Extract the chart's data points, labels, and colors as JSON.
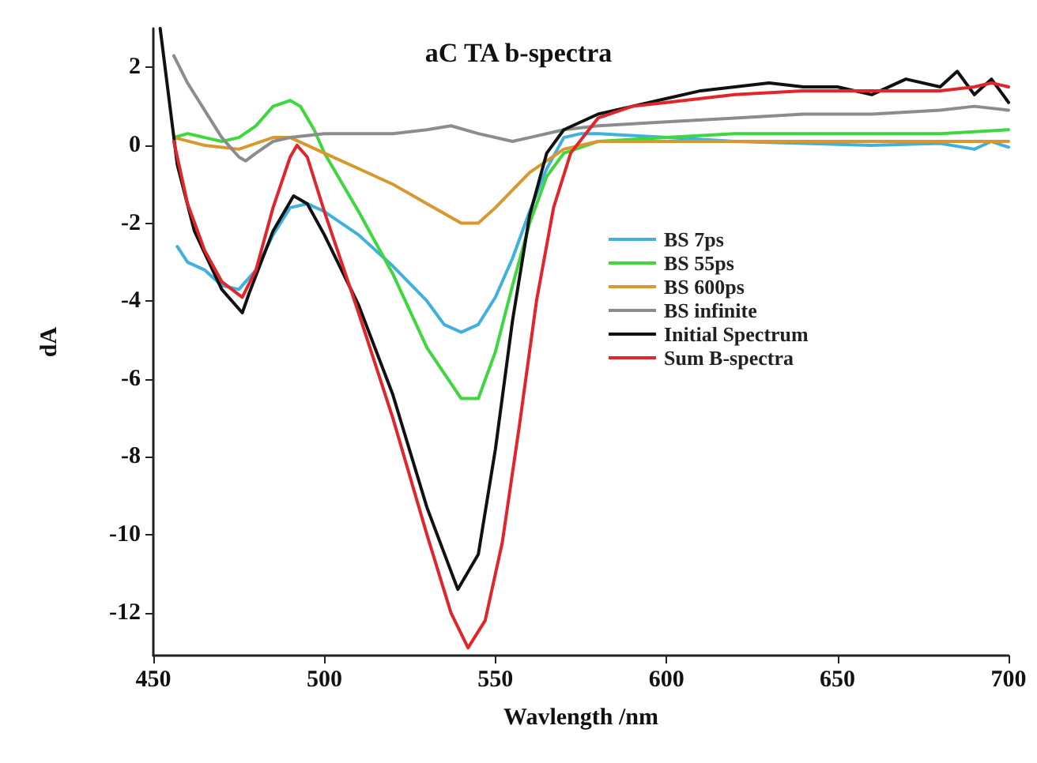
{
  "chart_data": {
    "type": "line",
    "title": "aC TA b-spectra",
    "xlabel": "Wavlength /nm",
    "ylabel": "dA",
    "xlim": [
      450,
      700
    ],
    "xticks": [
      450,
      500,
      550,
      600,
      650,
      700
    ],
    "ylim": [
      -13.1,
      3
    ],
    "yticks": [
      -12,
      -10,
      -8,
      -6,
      -4,
      -2,
      0,
      2
    ],
    "grid": false,
    "legend": "right",
    "marker": "none",
    "line_style": "solid",
    "series": [
      {
        "name": "BS 7ps",
        "color": "#3fb0e0",
        "x": [
          457,
          460,
          465,
          470,
          475,
          480,
          485,
          490,
          495,
          500,
          510,
          520,
          530,
          535,
          540,
          545,
          550,
          555,
          560,
          565,
          570,
          575,
          580,
          600,
          620,
          640,
          660,
          680,
          690,
          695,
          700
        ],
        "values": [
          -2.6,
          -3.0,
          -3.2,
          -3.6,
          -3.7,
          -3.2,
          -2.3,
          -1.6,
          -1.5,
          -1.7,
          -2.3,
          -3.1,
          -4.0,
          -4.6,
          -4.8,
          -4.6,
          -3.9,
          -2.9,
          -1.7,
          -0.6,
          0.2,
          0.3,
          0.3,
          0.2,
          0.1,
          0.05,
          0.0,
          0.05,
          -0.1,
          0.1,
          -0.05
        ]
      },
      {
        "name": "BS 55ps",
        "color": "#3ed83e",
        "x": [
          456,
          460,
          465,
          470,
          475,
          480,
          485,
          490,
          493,
          497,
          500,
          510,
          520,
          530,
          540,
          545,
          550,
          555,
          560,
          565,
          570,
          580,
          600,
          620,
          640,
          660,
          680,
          700
        ],
        "values": [
          0.2,
          0.3,
          0.2,
          0.1,
          0.2,
          0.5,
          1.0,
          1.15,
          1.0,
          0.4,
          -0.2,
          -1.7,
          -3.3,
          -5.2,
          -6.5,
          -6.5,
          -5.3,
          -3.6,
          -2.0,
          -0.8,
          -0.2,
          0.1,
          0.2,
          0.3,
          0.3,
          0.3,
          0.3,
          0.4
        ]
      },
      {
        "name": "BS 600ps",
        "color": "#d9982e",
        "x": [
          456,
          465,
          475,
          485,
          490,
          500,
          510,
          520,
          530,
          540,
          545,
          550,
          560,
          570,
          580,
          600,
          650,
          700
        ],
        "values": [
          0.2,
          0.0,
          -0.1,
          0.2,
          0.2,
          -0.2,
          -0.6,
          -1.0,
          -1.5,
          -2.0,
          -2.0,
          -1.6,
          -0.7,
          -0.1,
          0.1,
          0.1,
          0.1,
          0.1
        ]
      },
      {
        "name": "BS infinite",
        "color": "#8c8c8c",
        "x": [
          456,
          460,
          465,
          470,
          475,
          477,
          480,
          485,
          490,
          500,
          520,
          530,
          537,
          545,
          555,
          560,
          570,
          580,
          600,
          620,
          640,
          660,
          680,
          690,
          700
        ],
        "values": [
          2.3,
          1.6,
          0.9,
          0.2,
          -0.3,
          -0.4,
          -0.2,
          0.1,
          0.2,
          0.3,
          0.3,
          0.4,
          0.5,
          0.3,
          0.1,
          0.2,
          0.4,
          0.5,
          0.6,
          0.7,
          0.8,
          0.8,
          0.9,
          1.0,
          0.9
        ]
      },
      {
        "name": "Initial Spectrum",
        "color": "#111111",
        "x": [
          452,
          457,
          462,
          470,
          476,
          478,
          485,
          491,
          495,
          500,
          510,
          520,
          530,
          539,
          545,
          550,
          555,
          560,
          565,
          570,
          580,
          590,
          600,
          610,
          620,
          630,
          640,
          650,
          660,
          670,
          680,
          685,
          690,
          695,
          700
        ],
        "values": [
          3.0,
          -0.5,
          -2.2,
          -3.7,
          -4.3,
          -3.8,
          -2.2,
          -1.3,
          -1.5,
          -2.3,
          -4.1,
          -6.4,
          -9.3,
          -11.4,
          -10.5,
          -7.8,
          -4.5,
          -1.8,
          -0.2,
          0.4,
          0.8,
          1.0,
          1.2,
          1.4,
          1.5,
          1.6,
          1.5,
          1.5,
          1.3,
          1.7,
          1.5,
          1.9,
          1.3,
          1.7,
          1.1
        ]
      },
      {
        "name": "Sum B-spectra",
        "color": "#e0262a",
        "x": [
          456,
          460,
          465,
          470,
          476,
          480,
          485,
          490,
          492,
          495,
          500,
          510,
          520,
          530,
          537,
          542,
          547,
          552,
          557,
          562,
          567,
          572,
          580,
          590,
          600,
          620,
          640,
          660,
          680,
          690,
          695,
          700
        ],
        "values": [
          0.1,
          -1.5,
          -2.7,
          -3.5,
          -3.9,
          -3.2,
          -1.6,
          -0.3,
          0.0,
          -0.3,
          -1.7,
          -4.3,
          -7.0,
          -10.0,
          -12.0,
          -12.9,
          -12.2,
          -10.2,
          -7.2,
          -4.0,
          -1.6,
          -0.2,
          0.7,
          1.0,
          1.1,
          1.3,
          1.4,
          1.4,
          1.4,
          1.5,
          1.6,
          1.5
        ]
      }
    ]
  }
}
